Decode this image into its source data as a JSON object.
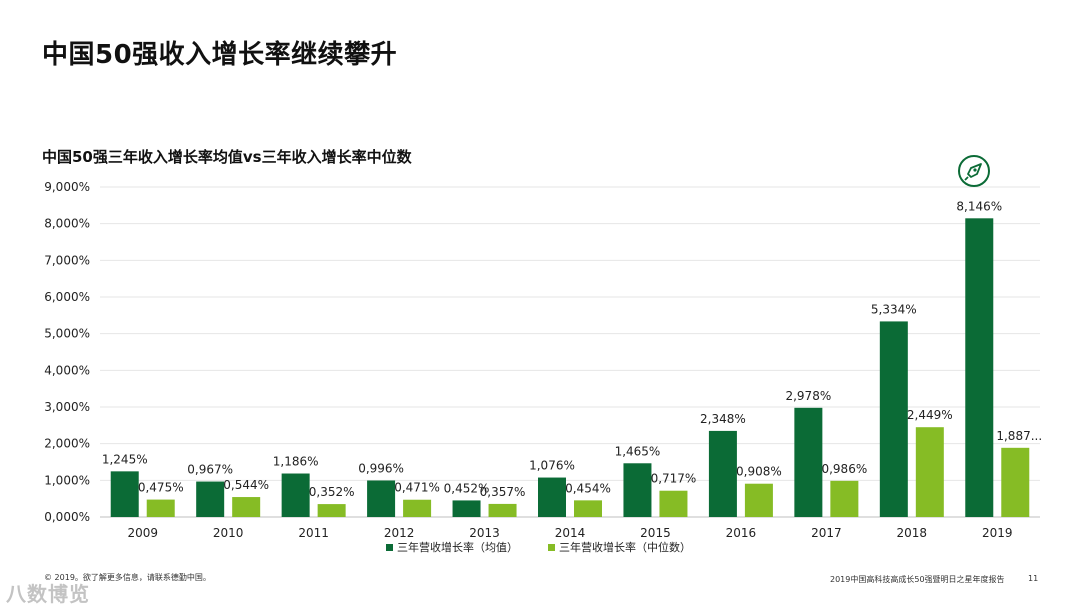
{
  "page": {
    "title": "中国50强收入增长率继续攀升"
  },
  "footer": {
    "copyright": "© 2019。欲了解更多信息，请联系德勤中国。",
    "report_name": "2019中国高科技高成长50强暨明日之星年度报告",
    "page_number": "11",
    "watermark": "八数博览"
  },
  "colors": {
    "mean": "#0b6b36",
    "median": "#86bc25",
    "grid": "#e6e6e6",
    "axis": "#bfbfbf",
    "text": "#222222"
  },
  "chart_data": {
    "type": "bar",
    "title": "中国50强三年收入增长率均值vs三年收入增长率中位数",
    "categories": [
      "2009",
      "2010",
      "2011",
      "2012",
      "2013",
      "2014",
      "2015",
      "2016",
      "2017",
      "2018",
      "2019"
    ],
    "series": [
      {
        "name": "三年营收增长率（均值）",
        "values": [
          1245,
          967,
          1186,
          996,
          452,
          1076,
          1465,
          2348,
          2978,
          5334,
          8146
        ],
        "labels": [
          "1,245%",
          "0,967%",
          "1,186%",
          "0,996%",
          "0,452%",
          "1,076%",
          "1,465%",
          "2,348%",
          "2,978%",
          "5,334%",
          "8,146%"
        ]
      },
      {
        "name": "三年营收增长率（中位数）",
        "values": [
          475,
          544,
          352,
          471,
          357,
          454,
          717,
          908,
          986,
          2449,
          1887
        ],
        "labels": [
          "0,475%",
          "0,544%",
          "0,352%",
          "0,471%",
          "0,357%",
          "0,454%",
          "0,717%",
          "0,908%",
          "0,986%",
          "2,449%",
          "1,887..."
        ]
      }
    ],
    "ylim": [
      0,
      9000
    ],
    "yticks": [
      0,
      1000,
      2000,
      3000,
      4000,
      5000,
      6000,
      7000,
      8000,
      9000
    ],
    "ytick_labels": [
      "0,000%",
      "1,000%",
      "2,000%",
      "3,000%",
      "4,000%",
      "5,000%",
      "6,000%",
      "7,000%",
      "8,000%",
      "9,000%"
    ],
    "xlabel": "",
    "ylabel": "",
    "grid": true,
    "legend_position": "bottom-center",
    "annotation_icon": "rocket-icon"
  }
}
